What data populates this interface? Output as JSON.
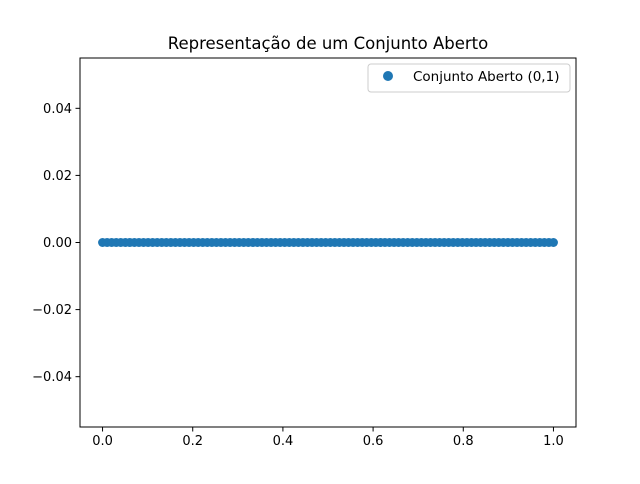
{
  "chart_data": {
    "type": "scatter",
    "title": "Representação de um Conjunto Aberto",
    "xlabel": "",
    "ylabel": "",
    "xlim": [
      -0.05,
      1.05
    ],
    "ylim": [
      -0.055,
      0.055
    ],
    "xticks": [
      {
        "value": 0.0,
        "label": "0.0"
      },
      {
        "value": 0.2,
        "label": "0.2"
      },
      {
        "value": 0.4,
        "label": "0.4"
      },
      {
        "value": 0.6,
        "label": "0.6"
      },
      {
        "value": 0.8,
        "label": "0.8"
      },
      {
        "value": 1.0,
        "label": "1.0"
      }
    ],
    "yticks": [
      {
        "value": 0.04,
        "label": "0.04"
      },
      {
        "value": 0.02,
        "label": "0.02"
      },
      {
        "value": 0.0,
        "label": "0.00"
      },
      {
        "value": -0.02,
        "label": "−0.02"
      },
      {
        "value": -0.04,
        "label": "−0.04"
      }
    ],
    "grid": false,
    "legend_position": "top-right",
    "series": [
      {
        "name": "Conjunto Aberto (0,1)",
        "color": "#1f77b4",
        "marker": "circle",
        "x": [
          0.0,
          0.0101,
          0.0202,
          0.0303,
          0.0404,
          0.0505,
          0.0606,
          0.0707,
          0.0808,
          0.0909,
          0.101,
          0.1111,
          0.1212,
          0.1313,
          0.1414,
          0.1515,
          0.1616,
          0.1717,
          0.1818,
          0.1919,
          0.202,
          0.2121,
          0.2222,
          0.2323,
          0.2424,
          0.2525,
          0.2626,
          0.2727,
          0.2828,
          0.2929,
          0.303,
          0.3131,
          0.3232,
          0.3333,
          0.3434,
          0.3535,
          0.3636,
          0.3737,
          0.3838,
          0.3939,
          0.404,
          0.4141,
          0.4242,
          0.4343,
          0.4444,
          0.4545,
          0.4646,
          0.4747,
          0.4848,
          0.4949,
          0.5051,
          0.5152,
          0.5253,
          0.5354,
          0.5455,
          0.5556,
          0.5657,
          0.5758,
          0.5859,
          0.596,
          0.6061,
          0.6162,
          0.6263,
          0.6364,
          0.6465,
          0.6566,
          0.6667,
          0.6768,
          0.6869,
          0.697,
          0.7071,
          0.7172,
          0.7273,
          0.7374,
          0.7475,
          0.7576,
          0.7677,
          0.7778,
          0.7879,
          0.798,
          0.8081,
          0.8182,
          0.8283,
          0.8384,
          0.8485,
          0.8586,
          0.8687,
          0.8788,
          0.8889,
          0.899,
          0.9091,
          0.9192,
          0.9293,
          0.9394,
          0.9495,
          0.9596,
          0.9697,
          0.9798,
          0.9899,
          1.0
        ],
        "y": [
          0,
          0,
          0,
          0,
          0,
          0,
          0,
          0,
          0,
          0,
          0,
          0,
          0,
          0,
          0,
          0,
          0,
          0,
          0,
          0,
          0,
          0,
          0,
          0,
          0,
          0,
          0,
          0,
          0,
          0,
          0,
          0,
          0,
          0,
          0,
          0,
          0,
          0,
          0,
          0,
          0,
          0,
          0,
          0,
          0,
          0,
          0,
          0,
          0,
          0,
          0,
          0,
          0,
          0,
          0,
          0,
          0,
          0,
          0,
          0,
          0,
          0,
          0,
          0,
          0,
          0,
          0,
          0,
          0,
          0,
          0,
          0,
          0,
          0,
          0,
          0,
          0,
          0,
          0,
          0,
          0,
          0,
          0,
          0,
          0,
          0,
          0,
          0,
          0,
          0,
          0,
          0,
          0,
          0,
          0,
          0,
          0,
          0,
          0,
          0
        ]
      }
    ]
  }
}
